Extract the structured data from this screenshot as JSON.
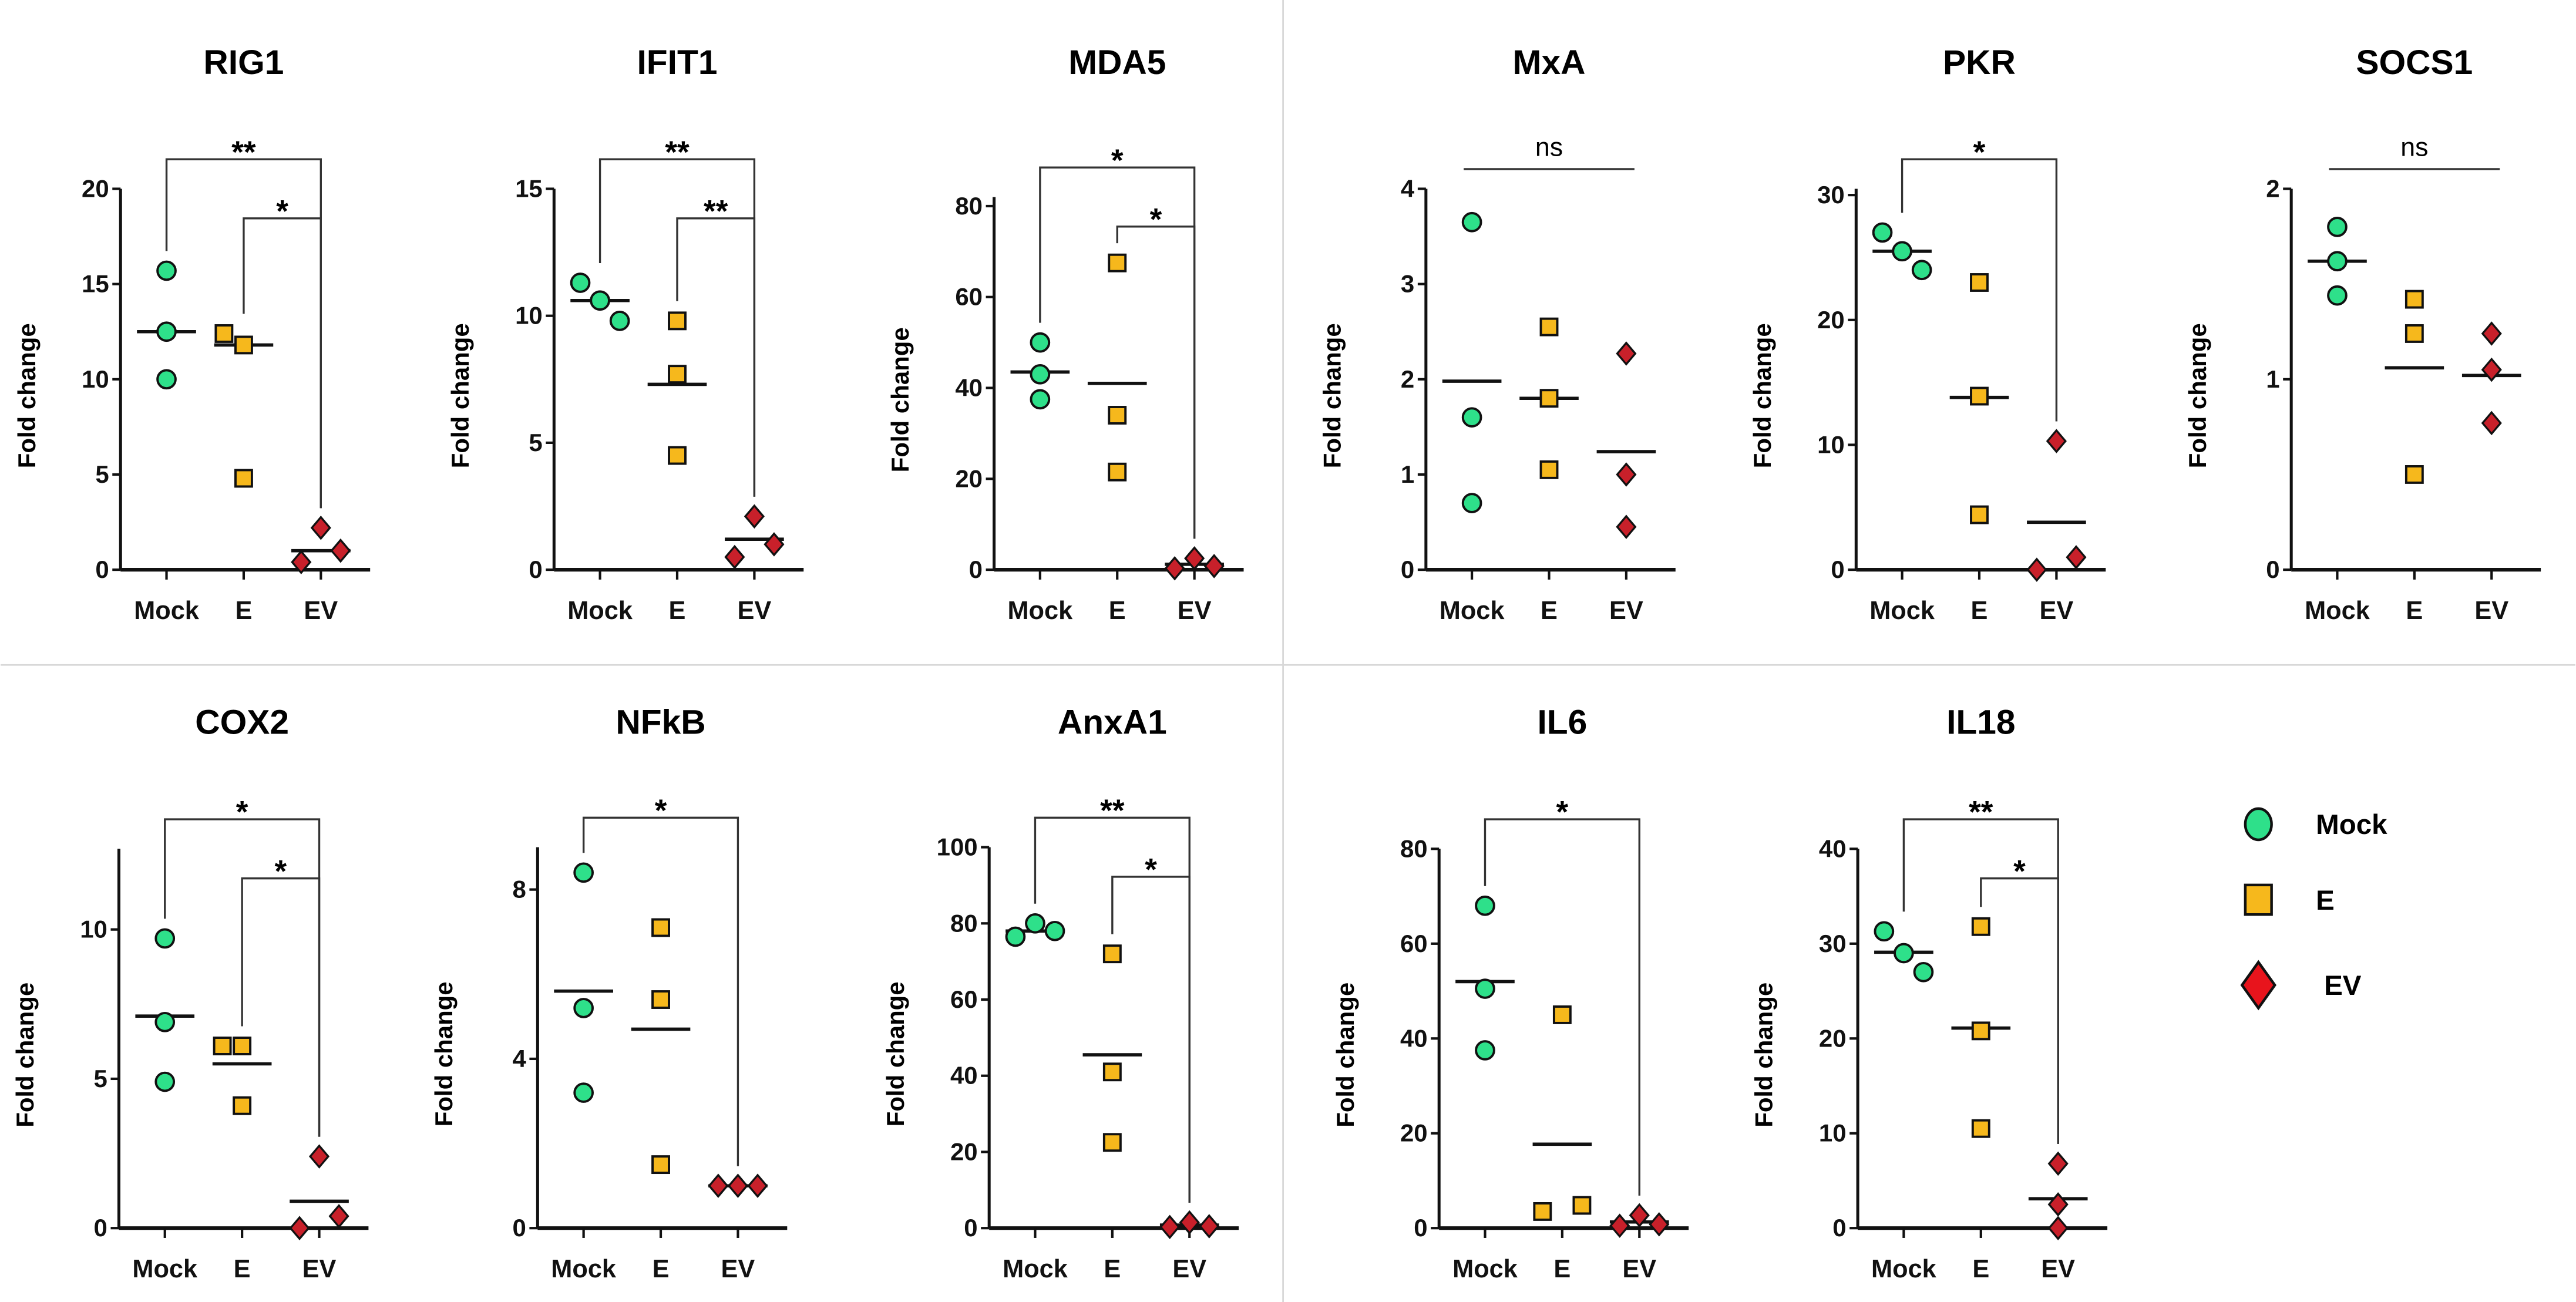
{
  "chart_data": {
    "type": "scatter",
    "groups": [
      "Mock",
      "E",
      "EV"
    ],
    "ylabel": "Fold change",
    "colors": {
      "Mock": "#2ee08a",
      "E": "#f6b81c",
      "EV": "#c8202a"
    },
    "legend": {
      "placement": "right",
      "entries": [
        "Mock",
        "E",
        "EV"
      ]
    },
    "panels": [
      {
        "title": "RIG1",
        "ylim": [
          0,
          20
        ],
        "ticks": [
          0,
          5,
          10,
          15,
          20
        ],
        "values": {
          "Mock": [
            15.7,
            12.5,
            10.0
          ],
          "E": [
            12.4,
            11.8,
            4.8
          ],
          "EV": [
            0.4,
            2.2,
            1.0
          ]
        },
        "center": {
          "Mock": 12.5,
          "E": 11.8,
          "EV": 1.0
        },
        "brackets": [
          {
            "from": "Mock",
            "to": "EV",
            "label": "**"
          },
          {
            "from": "E",
            "to": "EV",
            "label": "*"
          }
        ]
      },
      {
        "title": "IFIT1",
        "ylim": [
          0,
          15
        ],
        "ticks": [
          0,
          5,
          10,
          15
        ],
        "values": {
          "Mock": [
            11.3,
            10.6,
            9.8
          ],
          "E": [
            9.8,
            7.7,
            4.5
          ],
          "EV": [
            0.5,
            2.1,
            1.0
          ]
        },
        "center": {
          "Mock": 10.6,
          "E": 7.3,
          "EV": 1.2
        },
        "brackets": [
          {
            "from": "Mock",
            "to": "EV",
            "label": "**"
          },
          {
            "from": "E",
            "to": "EV",
            "label": "**"
          }
        ]
      },
      {
        "title": "MDA5",
        "ylim": [
          0,
          82
        ],
        "ticks": [
          0,
          20,
          40,
          60,
          80
        ],
        "values": {
          "Mock": [
            50,
            43,
            37.5
          ],
          "E": [
            67.5,
            34,
            21.5
          ],
          "EV": [
            0.3,
            2.5,
            0.8
          ]
        },
        "center": {
          "Mock": 43.5,
          "E": 41,
          "EV": 1.2
        },
        "brackets": [
          {
            "from": "Mock",
            "to": "EV",
            "label": "*"
          },
          {
            "from": "E",
            "to": "EV",
            "label": "*"
          }
        ]
      },
      {
        "title": "MxA",
        "ylim": [
          0,
          4
        ],
        "ticks": [
          0,
          1,
          2,
          3,
          4
        ],
        "values": {
          "Mock": [
            3.65,
            1.6,
            0.7
          ],
          "E": [
            2.55,
            1.8,
            1.05
          ],
          "EV": [
            2.27,
            1.0,
            0.45
          ]
        },
        "center": {
          "Mock": 1.98,
          "E": 1.8,
          "EV": 1.24
        },
        "brackets": [
          {
            "from": "Mock",
            "to": "EV",
            "label": "ns"
          }
        ]
      },
      {
        "title": "PKR",
        "ylim": [
          0,
          30.5
        ],
        "ticks": [
          0,
          10,
          20,
          30
        ],
        "values": {
          "Mock": [
            27,
            25.5,
            24
          ],
          "E": [
            23,
            13.9,
            4.4
          ],
          "EV": [
            0,
            10.3,
            1.0
          ]
        },
        "center": {
          "Mock": 25.5,
          "E": 13.8,
          "EV": 3.8
        },
        "brackets": [
          {
            "from": "Mock",
            "to": "EV",
            "label": "*"
          }
        ]
      },
      {
        "title": "SOCS1",
        "ylim": [
          0,
          2
        ],
        "ticks": [
          0,
          1,
          2
        ],
        "values": {
          "Mock": [
            1.8,
            1.62,
            1.44
          ],
          "E": [
            1.42,
            1.24,
            0.5
          ],
          "EV": [
            1.24,
            1.05,
            0.77
          ]
        },
        "center": {
          "Mock": 1.62,
          "E": 1.06,
          "EV": 1.02
        },
        "brackets": [
          {
            "from": "Mock",
            "to": "EV",
            "label": "ns"
          }
        ]
      },
      {
        "title": "COX2",
        "ylim": [
          0,
          12.7
        ],
        "ticks": [
          0,
          5,
          10
        ],
        "values": {
          "Mock": [
            9.7,
            6.9,
            4.9
          ],
          "E": [
            6.1,
            6.1,
            4.1
          ],
          "EV": [
            0,
            2.4,
            0.4
          ]
        },
        "center": {
          "Mock": 7.1,
          "E": 5.5,
          "EV": 0.9
        },
        "brackets": [
          {
            "from": "Mock",
            "to": "EV",
            "label": "*"
          },
          {
            "from": "E",
            "to": "EV",
            "label": "*"
          }
        ]
      },
      {
        "title": "NFkB",
        "ylim": [
          0,
          9
        ],
        "ticks": [
          0,
          4,
          8
        ],
        "values": {
          "Mock": [
            8.4,
            5.2,
            3.2
          ],
          "E": [
            7.1,
            5.4,
            1.5
          ],
          "EV": [
            1,
            1,
            1
          ]
        },
        "center": {
          "Mock": 5.6,
          "E": 4.7,
          "EV": 1.0
        },
        "brackets": [
          {
            "from": "Mock",
            "to": "EV",
            "label": "*"
          }
        ]
      },
      {
        "title": "AnxA1",
        "ylim": [
          0,
          100
        ],
        "ticks": [
          0,
          20,
          40,
          60,
          80,
          100
        ],
        "values": {
          "Mock": [
            76.5,
            80,
            78
          ],
          "E": [
            72,
            41,
            22.5
          ],
          "EV": [
            0.3,
            1.5,
            0.5
          ]
        },
        "center": {
          "Mock": 78,
          "E": 45.5,
          "EV": 0.8
        },
        "brackets": [
          {
            "from": "Mock",
            "to": "EV",
            "label": "**"
          },
          {
            "from": "E",
            "to": "EV",
            "label": "*"
          }
        ]
      },
      {
        "title": "IL6",
        "ylim": [
          0,
          80
        ],
        "ticks": [
          0,
          20,
          40,
          60,
          80
        ],
        "values": {
          "Mock": [
            68,
            50.5,
            37.5
          ],
          "E": [
            3.5,
            45,
            4.8
          ],
          "EV": [
            0.5,
            2.7,
            0.8
          ]
        },
        "center": {
          "Mock": 52,
          "E": 17.7,
          "EV": 1.3
        },
        "brackets": [
          {
            "from": "Mock",
            "to": "EV",
            "label": "*"
          }
        ]
      },
      {
        "title": "IL18",
        "ylim": [
          0,
          40
        ],
        "ticks": [
          0,
          10,
          20,
          30,
          40
        ],
        "values": {
          "Mock": [
            31.3,
            29,
            27
          ],
          "E": [
            31.8,
            20.8,
            10.5
          ],
          "EV": [
            6.8,
            2.5,
            0
          ]
        },
        "center": {
          "Mock": 29.1,
          "E": 21.1,
          "EV": 3.1
        },
        "brackets": [
          {
            "from": "Mock",
            "to": "EV",
            "label": "**"
          },
          {
            "from": "E",
            "to": "EV",
            "label": "*"
          }
        ]
      }
    ]
  }
}
